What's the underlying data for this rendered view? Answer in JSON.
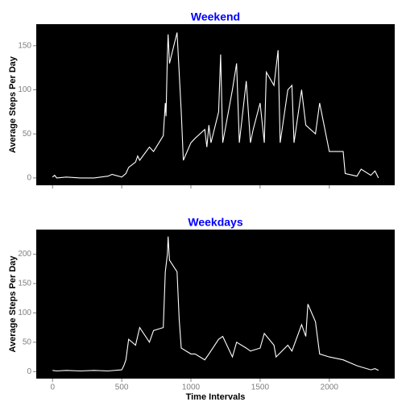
{
  "chart_data": [
    {
      "type": "line",
      "title": "Weekend",
      "ylabel": "Average Steps Per Day",
      "color": "#ffffff",
      "background": "#000000",
      "x": [
        0,
        15,
        30,
        100,
        200,
        300,
        400,
        430,
        500,
        530,
        550,
        600,
        615,
        630,
        700,
        730,
        800,
        815,
        820,
        830,
        835,
        845,
        900,
        915,
        930,
        945,
        1000,
        1030,
        1100,
        1115,
        1130,
        1145,
        1200,
        1215,
        1230,
        1300,
        1330,
        1350,
        1400,
        1430,
        1450,
        1500,
        1530,
        1545,
        1600,
        1630,
        1645,
        1700,
        1730,
        1745,
        1800,
        1830,
        1900,
        1930,
        2000,
        2030,
        2100,
        2115,
        2200,
        2230,
        2300,
        2330,
        2355
      ],
      "values": [
        1,
        3,
        0,
        1,
        0,
        0,
        2,
        4,
        1,
        5,
        12,
        18,
        25,
        20,
        35,
        30,
        48,
        85,
        70,
        140,
        163,
        130,
        165,
        120,
        75,
        20,
        40,
        45,
        55,
        35,
        60,
        40,
        75,
        140,
        40,
        100,
        130,
        40,
        110,
        40,
        55,
        85,
        40,
        120,
        105,
        145,
        40,
        100,
        105,
        40,
        100,
        60,
        50,
        85,
        30,
        30,
        30,
        5,
        2,
        10,
        3,
        8,
        0
      ],
      "xlim": [
        -117.75,
        2472.75
      ],
      "ylim": [
        -8.3,
        174.5
      ],
      "yticks": [
        0,
        50,
        100,
        150
      ]
    },
    {
      "type": "line",
      "title": "Weekdays",
      "ylabel": "Average Steps Per Day",
      "xlabel": "Time Intervals",
      "color": "#ffffff",
      "background": "#000000",
      "x": [
        0,
        30,
        100,
        200,
        300,
        400,
        500,
        515,
        530,
        550,
        600,
        630,
        700,
        730,
        800,
        815,
        830,
        835,
        845,
        900,
        915,
        930,
        1000,
        1030,
        1100,
        1130,
        1200,
        1230,
        1300,
        1330,
        1400,
        1430,
        1500,
        1530,
        1600,
        1615,
        1700,
        1730,
        1800,
        1830,
        1845,
        1900,
        1930,
        2000,
        2100,
        2200,
        2300,
        2330,
        2355
      ],
      "values": [
        2,
        1,
        2,
        1,
        2,
        1,
        3,
        10,
        20,
        55,
        45,
        75,
        50,
        70,
        75,
        170,
        200,
        230,
        190,
        170,
        90,
        40,
        30,
        30,
        20,
        30,
        55,
        60,
        25,
        50,
        40,
        35,
        40,
        65,
        45,
        25,
        45,
        35,
        80,
        60,
        115,
        85,
        30,
        25,
        20,
        10,
        3,
        5,
        2
      ],
      "xlim": [
        -117.75,
        2472.75
      ],
      "ylim": [
        -12,
        242
      ],
      "yticks": [
        0,
        50,
        100,
        150,
        200
      ],
      "xticks": [
        0,
        500,
        1000,
        1500,
        2000
      ]
    }
  ]
}
